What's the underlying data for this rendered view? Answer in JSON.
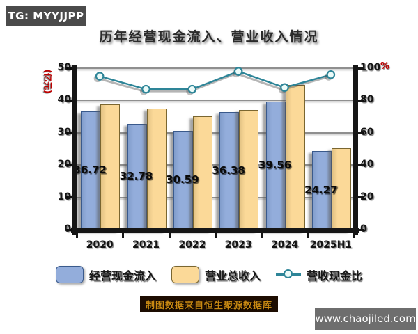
{
  "badge": {
    "text": "TG: MYYJJPP"
  },
  "title": "历年经营现金流入、营业收入情况",
  "footnote": "制图数据来自恒生聚源数据库",
  "watermark": "www.chaojiled.com",
  "chart_data": {
    "type": "bar",
    "subtype": "grouped bars with overlay line",
    "categories": [
      "2020",
      "2021",
      "2022",
      "2023",
      "2024",
      "2025H1"
    ],
    "series": [
      {
        "name": "经营现金流入",
        "type": "bar",
        "axis": "left",
        "color": "#93ADDB",
        "border": "#3A5A8C",
        "values": [
          36.72,
          32.78,
          30.59,
          36.38,
          39.56,
          24.27
        ],
        "data_labels_visible": true
      },
      {
        "name": "营业总收入",
        "type": "bar",
        "axis": "left",
        "color": "#FBD998",
        "border": "#7A6630",
        "values": [
          38.9,
          37.6,
          35.2,
          37.1,
          44.9,
          25.2
        ],
        "data_labels_visible": false
      },
      {
        "name": "营收现金比",
        "type": "line",
        "axis": "right",
        "color": "#2E8598",
        "marker_fill": "#ECFBF9",
        "values": [
          95,
          87,
          87,
          98,
          88,
          96
        ]
      }
    ],
    "left_axis": {
      "label": "(亿元)",
      "label_color": "#C00000",
      "ticks": [
        0,
        10,
        20,
        30,
        40,
        50
      ],
      "min": 0,
      "max": 50
    },
    "right_axis": {
      "label": "%",
      "label_color": "#C00000",
      "ticks": [
        0,
        20,
        40,
        60,
        80,
        100
      ],
      "min": 0,
      "max": 100
    },
    "grid": true,
    "legend_position": "bottom"
  }
}
